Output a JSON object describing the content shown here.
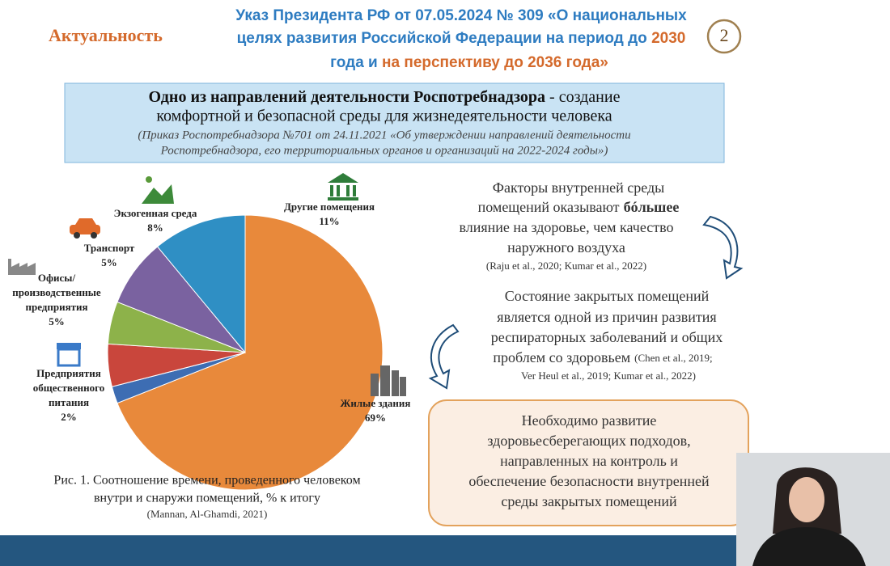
{
  "header": {
    "section": "Актуальность",
    "title_lines": [
      [
        "Указ Президента РФ от 07.05.2024 № 309 «О национальных"
      ],
      [
        "целях развития Российской Федерации на период до ",
        "2030"
      ],
      [
        "года и ",
        "на перспективу до ",
        "2036",
        " года»"
      ]
    ],
    "slide_number": "2"
  },
  "banner": {
    "bold": "Одно из направлений деятельности Роспотребнадзора",
    "rest_line1": " - создание",
    "line2": "комфортной и безопасной среды для жизнедеятельности человека",
    "note_line1": "(Приказ Роспотребнадзора №701 от 24.11.2021 «Об утверждении направлений деятельности",
    "note_line2": "Роспотребнадзора, его территориальных органов и организаций на 2022-2024 годы»)"
  },
  "pie": {
    "type": "pie",
    "categories": [
      [
        "Жилые здания"
      ],
      [
        "Предприятия",
        "общественного",
        "питания"
      ],
      [
        "Офисы/",
        "производственные",
        "предприятия"
      ],
      [
        "Транспорт"
      ],
      [
        "Экзогенная среда"
      ],
      [
        "Другие помещения"
      ]
    ],
    "values": [
      69,
      2,
      5,
      5,
      8,
      11
    ],
    "value_labels": [
      "69%",
      "2%",
      "5%",
      "5%",
      "8%",
      "11%"
    ],
    "colors": [
      "#e8893b",
      "#3d6db3",
      "#c9463c",
      "#8db24a",
      "#7a62a0",
      "#2f8fc4"
    ],
    "caption_line1": "Рис. 1. Соотношение времени, проведенного человеком",
    "caption_line2": "внутри и снаружи помещений, % к итогу",
    "source": "(Mannan, Al-Ghamdi, 2021)"
  },
  "factors": {
    "line1": "Факторы внутренней среды",
    "line2a": "помещений оказывают",
    "line2b": "бóльшее",
    "line3": "влияние на здоровье, чем качество",
    "line4": "наружного воздуха",
    "refs": "(Raju et al., 2020; Kumar et al., 2022)"
  },
  "state": {
    "line1": "Состояние закрытых помещений",
    "line2": "является одной из причин развития",
    "line3": "респираторных заболеваний и общих",
    "line4a": "проблем со здоровьем",
    "line4b": "(Chen et al., 2019;",
    "line5": "Ver Heul et al., 2019; Kumar et al., 2022)"
  },
  "conclusion": {
    "lines": [
      "Необходимо развитие",
      "здоровьесберегающих подходов,",
      "направленных на контроль и",
      "обеспечение безопасности внутренней",
      "среды закрытых помещений"
    ]
  }
}
